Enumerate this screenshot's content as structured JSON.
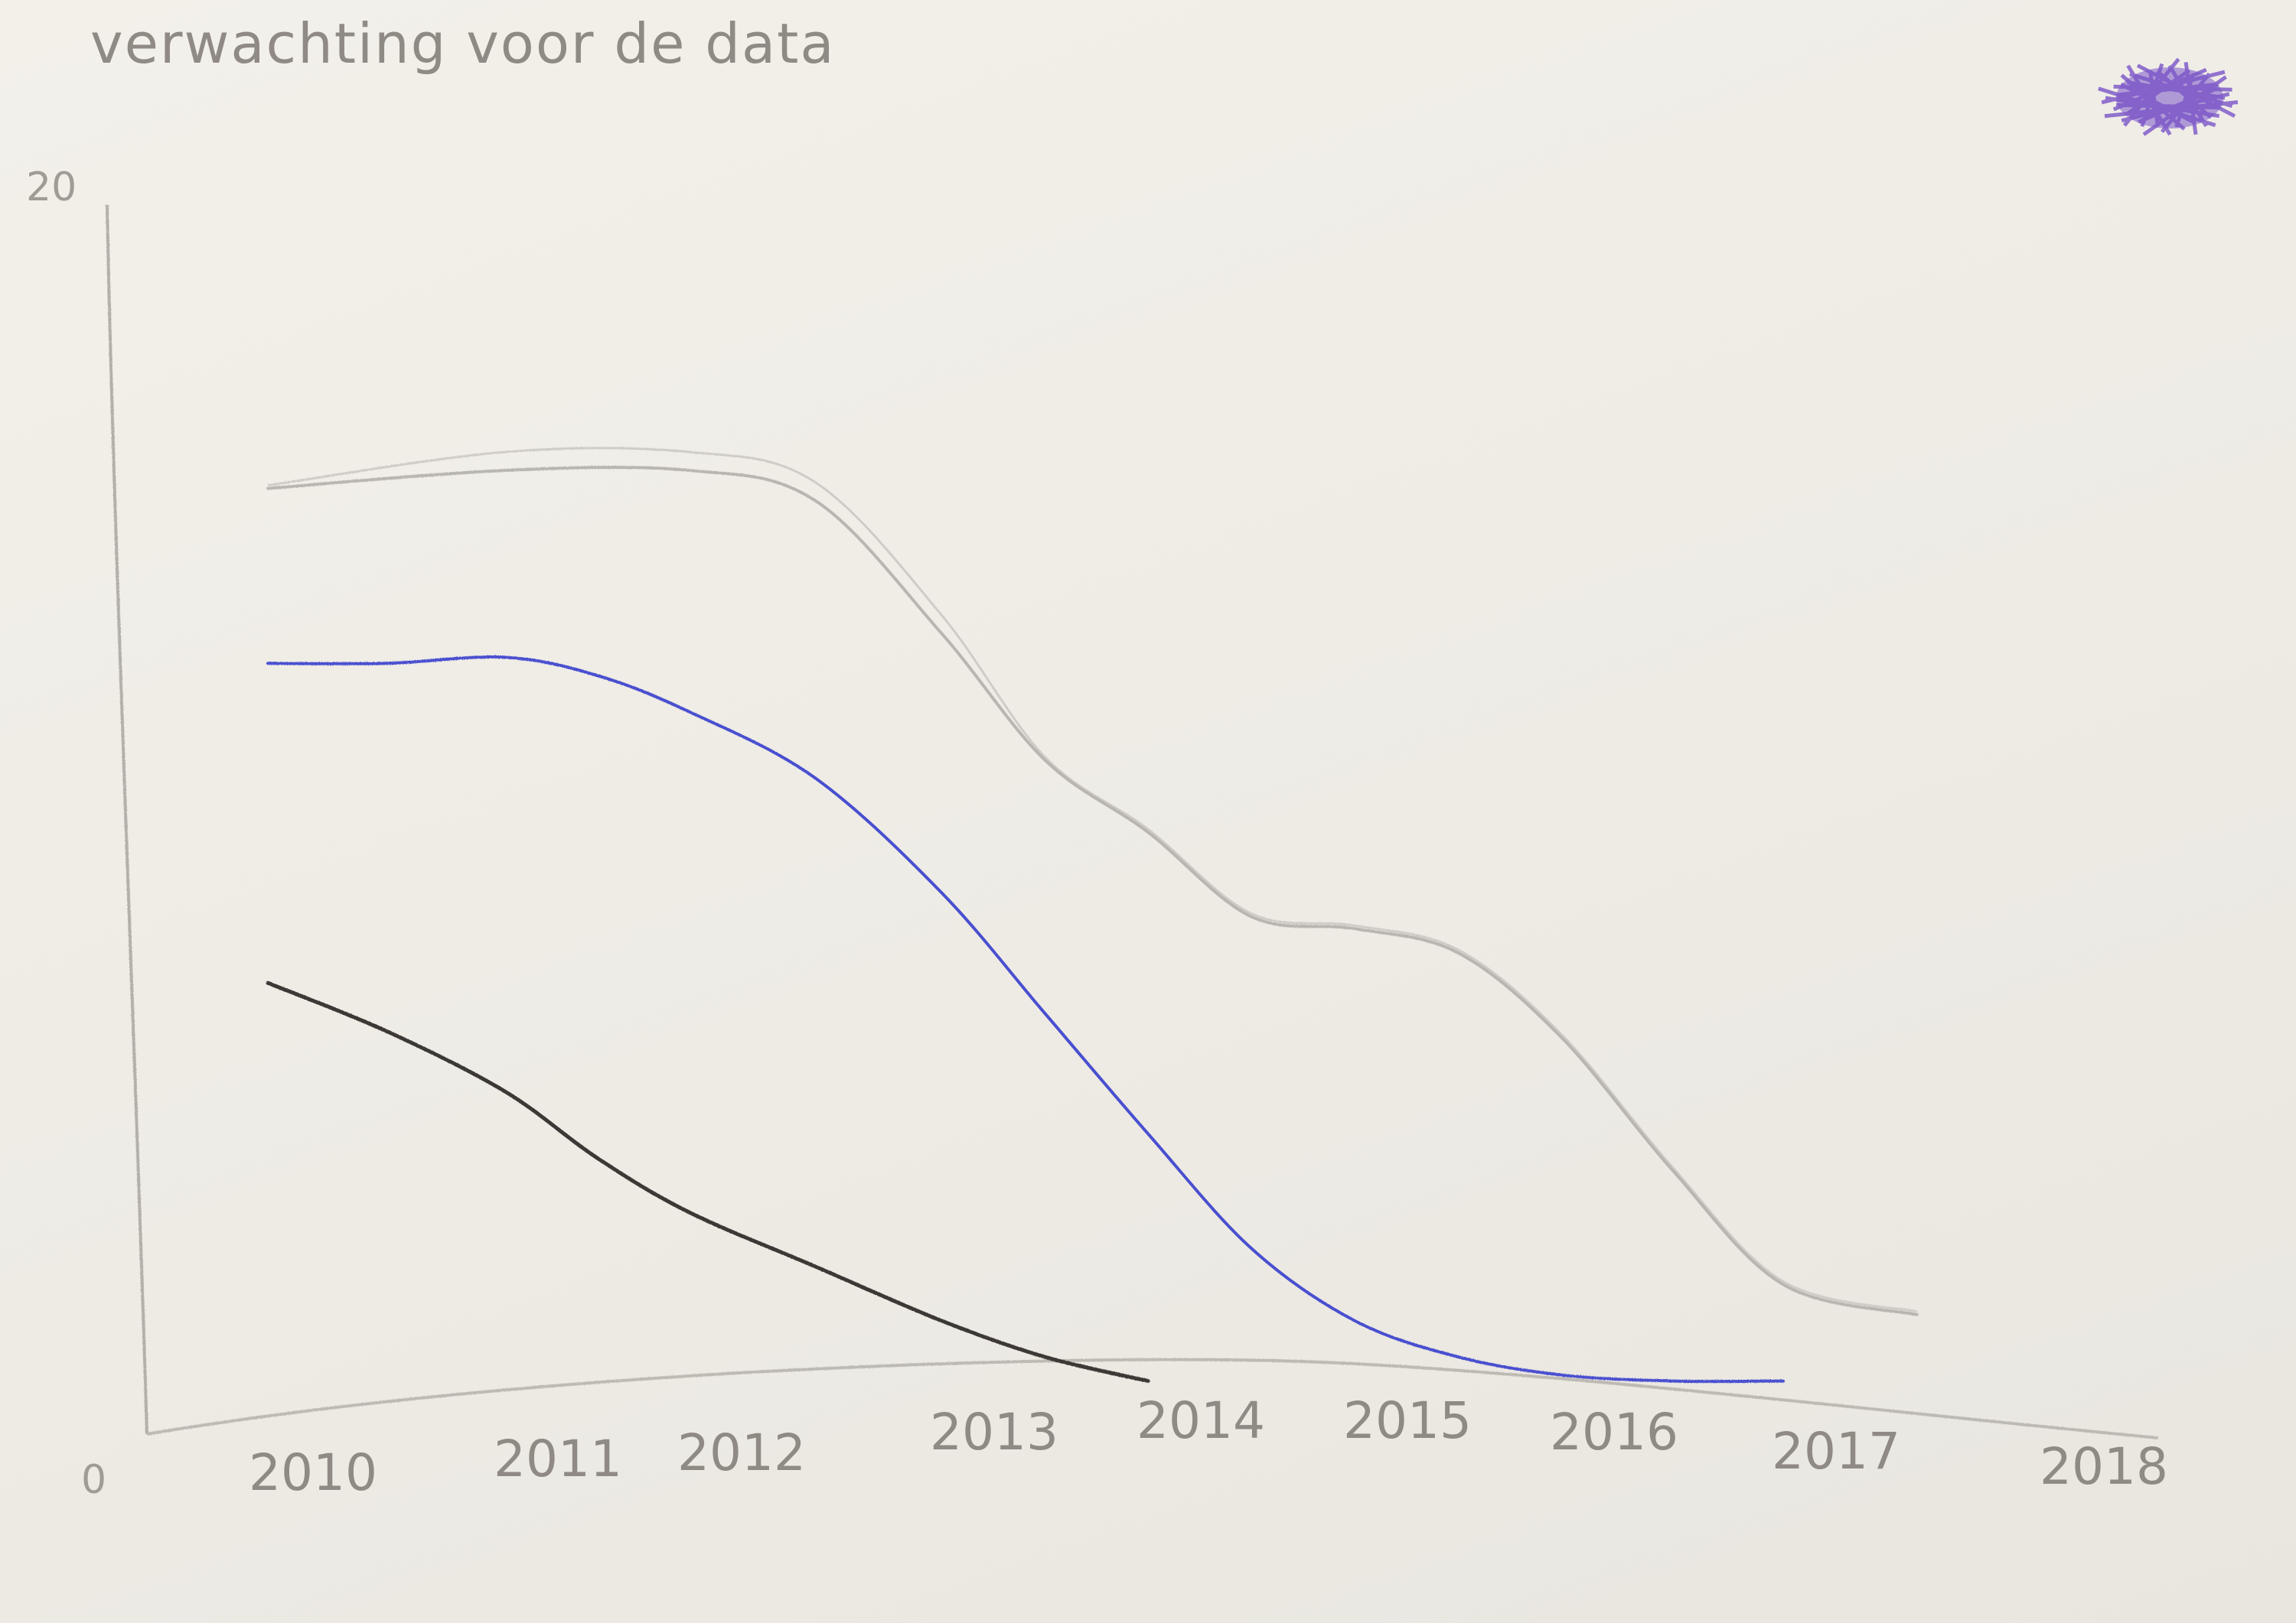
{
  "chart_data": {
    "type": "line",
    "title": "verwachting voor de data",
    "xlabel": "",
    "ylabel": "",
    "x": [
      2010,
      2011,
      2012,
      2013,
      2014,
      2015,
      2016,
      2017,
      2018
    ],
    "x_tick_labels": [
      "2010",
      "2011",
      "2012",
      "2013",
      "2014",
      "2015",
      "2016",
      "2017",
      "2018"
    ],
    "y_tick_labels": [
      "0",
      "20"
    ],
    "xlim": [
      2009.5,
      2018.5
    ],
    "ylim": [
      0,
      20
    ],
    "grid": false,
    "legend": "none",
    "series": [
      {
        "color": "#b9b6b1",
        "points": [
          [
            2010,
            15.3
          ],
          [
            2011,
            15.6
          ],
          [
            2012,
            15.6
          ],
          [
            2012.5,
            15.1
          ],
          [
            2013,
            12.9
          ],
          [
            2013.5,
            10.8
          ],
          [
            2014,
            9.6
          ],
          [
            2014.5,
            8.2
          ],
          [
            2015,
            8.0
          ],
          [
            2015.5,
            7.6
          ],
          [
            2016,
            6.2
          ],
          [
            2016.5,
            4.0
          ],
          [
            2017,
            2.1
          ],
          [
            2017.5,
            1.6
          ]
        ]
      },
      {
        "color": "#4a4fcf",
        "points": [
          [
            2010,
            12.4
          ],
          [
            2010.5,
            12.4
          ],
          [
            2011,
            12.5
          ],
          [
            2011.5,
            12.2
          ],
          [
            2012,
            11.6
          ],
          [
            2012.5,
            10.5
          ],
          [
            2013,
            8.6
          ],
          [
            2013.5,
            6.6
          ],
          [
            2014,
            4.6
          ],
          [
            2014.5,
            2.7
          ],
          [
            2015,
            1.5
          ],
          [
            2015.5,
            0.9
          ],
          [
            2016,
            0.6
          ],
          [
            2016.5,
            0.5
          ],
          [
            2017,
            0.5
          ]
        ]
      },
      {
        "color": "#3a3836",
        "points": [
          [
            2010,
            7.1
          ],
          [
            2010.5,
            6.3
          ],
          [
            2011,
            5.3
          ],
          [
            2011.5,
            4.2
          ],
          [
            2012,
            3.3
          ],
          [
            2012.5,
            2.4
          ],
          [
            2013,
            1.5
          ],
          [
            2013.5,
            0.9
          ],
          [
            2014,
            0.5
          ]
        ]
      }
    ],
    "annotations": [
      {
        "shape": "scribble",
        "color": "#7a55c8",
        "position": "top-right"
      }
    ]
  }
}
